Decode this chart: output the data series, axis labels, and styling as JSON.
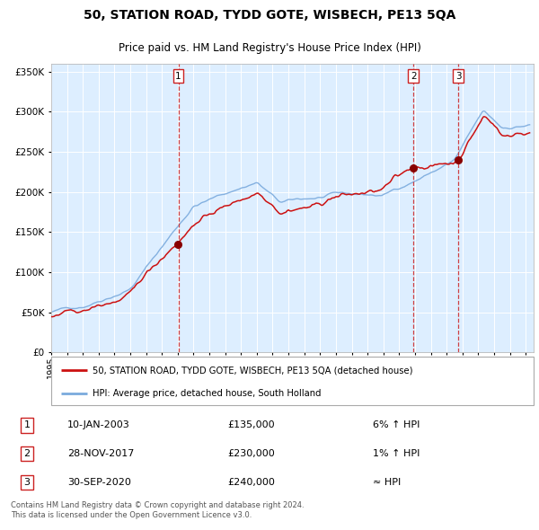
{
  "title": "50, STATION ROAD, TYDD GOTE, WISBECH, PE13 5QA",
  "subtitle": "Price paid vs. HM Land Registry's House Price Index (HPI)",
  "legend_line1": "50, STATION ROAD, TYDD GOTE, WISBECH, PE13 5QA (detached house)",
  "legend_line2": "HPI: Average price, detached house, South Holland",
  "sale_points": [
    {
      "label": "1",
      "date_year": 2003.04,
      "price": 135000
    },
    {
      "label": "2",
      "date_year": 2017.91,
      "price": 230000
    },
    {
      "label": "3",
      "date_year": 2020.75,
      "price": 240000
    }
  ],
  "sale_annotations": [
    {
      "num": "1",
      "date": "10-JAN-2003",
      "price": "£135,000",
      "hpi_rel": "6% ↑ HPI"
    },
    {
      "num": "2",
      "date": "28-NOV-2017",
      "price": "£230,000",
      "hpi_rel": "1% ↑ HPI"
    },
    {
      "num": "3",
      "date": "30-SEP-2020",
      "price": "£240,000",
      "hpi_rel": "≈ HPI"
    }
  ],
  "hpi_color": "#7aaadd",
  "property_color": "#cc1111",
  "sale_dot_color": "#880000",
  "plot_bg_color": "#ddeeff",
  "grid_color": "#ffffff",
  "vline_color": "#cc2222",
  "xmin": 1995.0,
  "xmax": 2025.5,
  "ylim": [
    0,
    360000
  ],
  "yticks": [
    0,
    50000,
    100000,
    150000,
    200000,
    250000,
    300000,
    350000
  ],
  "footer": "Contains HM Land Registry data © Crown copyright and database right 2024.\nThis data is licensed under the Open Government Licence v3.0."
}
